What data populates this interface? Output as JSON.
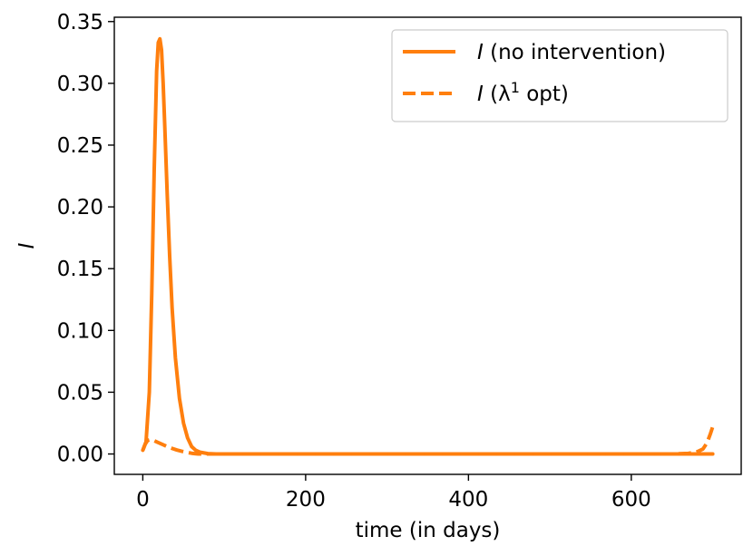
{
  "chart_data": {
    "type": "line",
    "xlabel": "time (in days)",
    "ylabel": "I",
    "xlim": [
      -35,
      735
    ],
    "ylim": [
      -0.0165,
      0.3535
    ],
    "xticks": [
      0,
      200,
      400,
      600
    ],
    "xtick_labels": [
      "0",
      "200",
      "400",
      "600"
    ],
    "yticks": [
      0.0,
      0.05,
      0.1,
      0.15,
      0.2,
      0.25,
      0.3,
      0.35
    ],
    "ytick_labels": [
      "0.00",
      "0.05",
      "0.10",
      "0.15",
      "0.20",
      "0.25",
      "0.30",
      "0.35"
    ],
    "grid": false,
    "legend_position": "top-right",
    "series": [
      {
        "name": "I (no intervention)",
        "legend": {
          "italic": "I",
          "rest": " (no intervention)"
        },
        "style": "solid",
        "color": "#ff7f0e",
        "x": [
          0,
          4,
          8,
          11,
          14,
          17,
          19,
          21,
          23,
          25,
          27,
          30,
          33,
          36,
          40,
          45,
          50,
          55,
          60,
          65,
          70,
          80,
          90,
          100,
          150,
          200,
          300,
          400,
          500,
          600,
          650,
          680,
          700
        ],
        "y": [
          0.003,
          0.01,
          0.05,
          0.13,
          0.23,
          0.31,
          0.333,
          0.336,
          0.327,
          0.3,
          0.265,
          0.21,
          0.16,
          0.118,
          0.078,
          0.045,
          0.025,
          0.013,
          0.006,
          0.003,
          0.0015,
          0.0003,
          0.0,
          0.0,
          0.0,
          0.0,
          0.0,
          0.0,
          0.0,
          0.0,
          0.0,
          0.0,
          0.0
        ]
      },
      {
        "name": "I (λ1 opt)",
        "legend": {
          "italic": "I",
          "mid": " (λ",
          "sup": "1",
          "rest": " opt)"
        },
        "style": "dashed",
        "color": "#ff7f0e",
        "x": [
          0,
          3,
          6,
          9,
          13,
          18,
          24,
          30,
          36,
          42,
          48,
          55,
          60,
          65,
          68,
          100,
          200,
          300,
          400,
          500,
          600,
          650,
          670,
          680,
          688,
          693,
          697,
          700
        ],
        "y": [
          0.003,
          0.008,
          0.011,
          0.0115,
          0.011,
          0.0095,
          0.0078,
          0.006,
          0.0045,
          0.0032,
          0.0022,
          0.0012,
          0.0006,
          0.0002,
          0.0,
          0.0,
          0.0,
          0.0,
          0.0,
          0.0,
          0.0,
          0.0,
          0.0005,
          0.0015,
          0.004,
          0.009,
          0.016,
          0.022
        ]
      }
    ]
  }
}
